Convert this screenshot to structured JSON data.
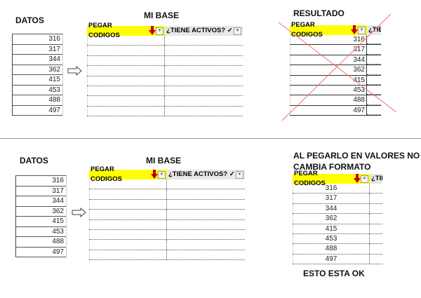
{
  "codes": [
    "316",
    "317",
    "344",
    "362",
    "415",
    "453",
    "488",
    "497"
  ],
  "top": {
    "datos_label": "DATOS",
    "base_label": "MI BASE",
    "result_label": "RESULTADO"
  },
  "bottom": {
    "datos_label": "DATOS",
    "base_label": "MI BASE",
    "result_label_1": "AL PEGARLO EN VALORES NO",
    "result_label_2": "CAMBIA FORMATO",
    "ok_label": "ESTO ESTA OK"
  },
  "headers": {
    "col1": "PEGAR CODIGOS",
    "col2": "¿TIENE ACTIVOS? ✓",
    "col2_short": "¿TIE"
  },
  "colors": {
    "header_yellow": "#ffff00",
    "arrow_red": "#c00000",
    "cross_red": "#f07070"
  }
}
